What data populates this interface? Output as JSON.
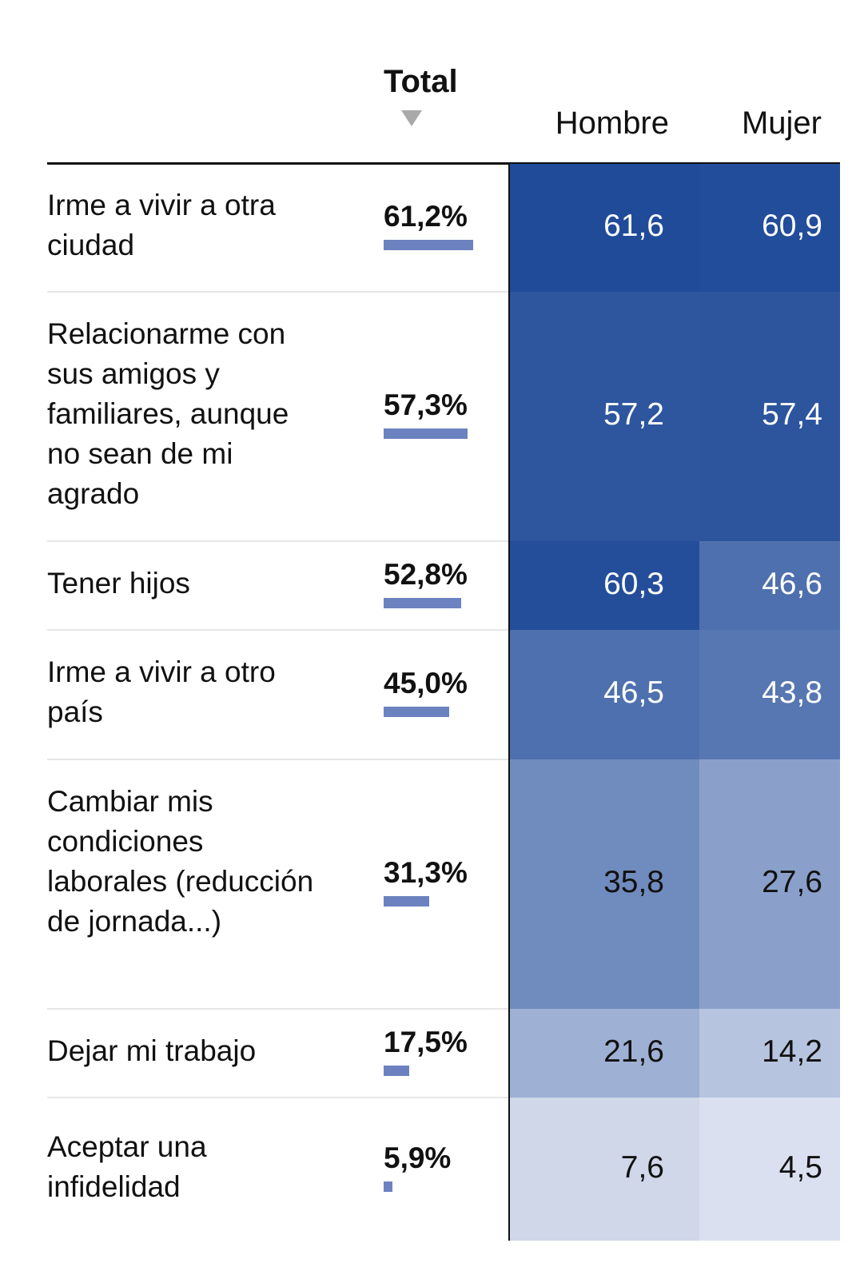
{
  "chart_data": {
    "type": "table",
    "columns": {
      "total": "Total",
      "men": "Hombre",
      "women": "Mujer"
    },
    "rows": [
      {
        "label": "Irme a vivir a otra ciudad",
        "total": 61.2,
        "total_label": "61,2%",
        "men": 61.6,
        "men_label": "61,6",
        "women": 60.9,
        "women_label": "60,9"
      },
      {
        "label": "Relacionarme con sus amigos y familiares, aunque no sean de mi agrado",
        "total": 57.3,
        "total_label": "57,3%",
        "men": 57.2,
        "men_label": "57,2",
        "women": 57.4,
        "women_label": "57,4"
      },
      {
        "label": "Tener hijos",
        "total": 52.8,
        "total_label": "52,8%",
        "men": 60.3,
        "men_label": "60,3",
        "women": 46.6,
        "women_label": "46,6"
      },
      {
        "label": "Irme a vivir a otro país",
        "total": 45.0,
        "total_label": "45,0%",
        "men": 46.5,
        "men_label": "46,5",
        "women": 43.8,
        "women_label": "43,8"
      },
      {
        "label": "Cambiar mis condiciones laborales (reducción de jornada...)",
        "total": 31.3,
        "total_label": "31,3%",
        "men": 35.8,
        "men_label": "35,8",
        "women": 27.6,
        "women_label": "27,6"
      },
      {
        "label": "Dejar mi trabajo",
        "total": 17.5,
        "total_label": "17,5%",
        "men": 21.6,
        "men_label": "21,6",
        "women": 14.2,
        "women_label": "14,2"
      },
      {
        "label": "Aceptar una infidelidad",
        "total": 5.9,
        "total_label": "5,9%",
        "men": 7.6,
        "men_label": "7,6",
        "women": 4.5,
        "women_label": "4,5"
      }
    ],
    "bar_color": "#6c82c0",
    "sort": "total-descending"
  }
}
